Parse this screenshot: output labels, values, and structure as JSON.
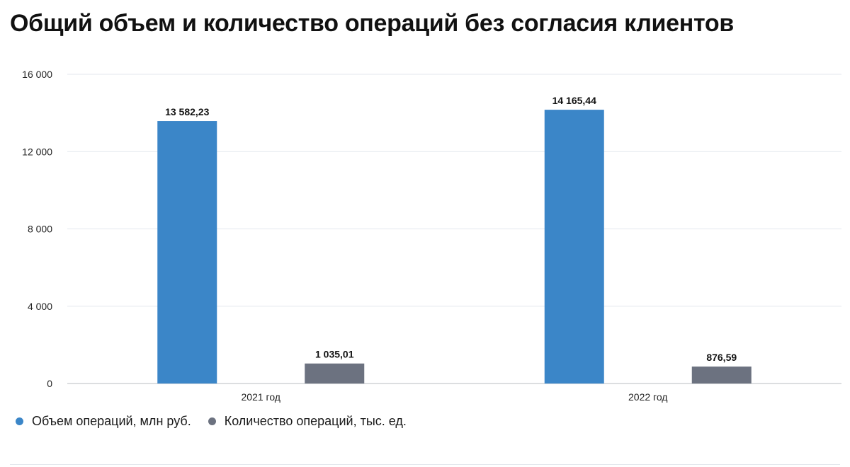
{
  "chart_data": {
    "type": "bar",
    "title": "Общий объем и количество операций без согласия клиентов",
    "categories": [
      "2021 год",
      "2022 год"
    ],
    "series": [
      {
        "name": "Объем операций, млн руб.",
        "color": "#3b86c8",
        "values": [
          13582.23,
          14165.44
        ],
        "labels": [
          "13 582,23",
          "14 165,44"
        ]
      },
      {
        "name": "Количество операций, тыс. ед.",
        "color": "#6c7280",
        "values": [
          1035.01,
          876.59
        ],
        "labels": [
          "1 035,01",
          "876,59"
        ]
      }
    ],
    "ylim": [
      0,
      16000
    ],
    "yticks": [
      0,
      4000,
      8000,
      12000,
      16000
    ],
    "ytick_labels": [
      "0",
      "4 000",
      "8 000",
      "12 000",
      "16 000"
    ],
    "xlabel": "",
    "ylabel": "",
    "grid": true,
    "legend_position": "bottom-left"
  }
}
